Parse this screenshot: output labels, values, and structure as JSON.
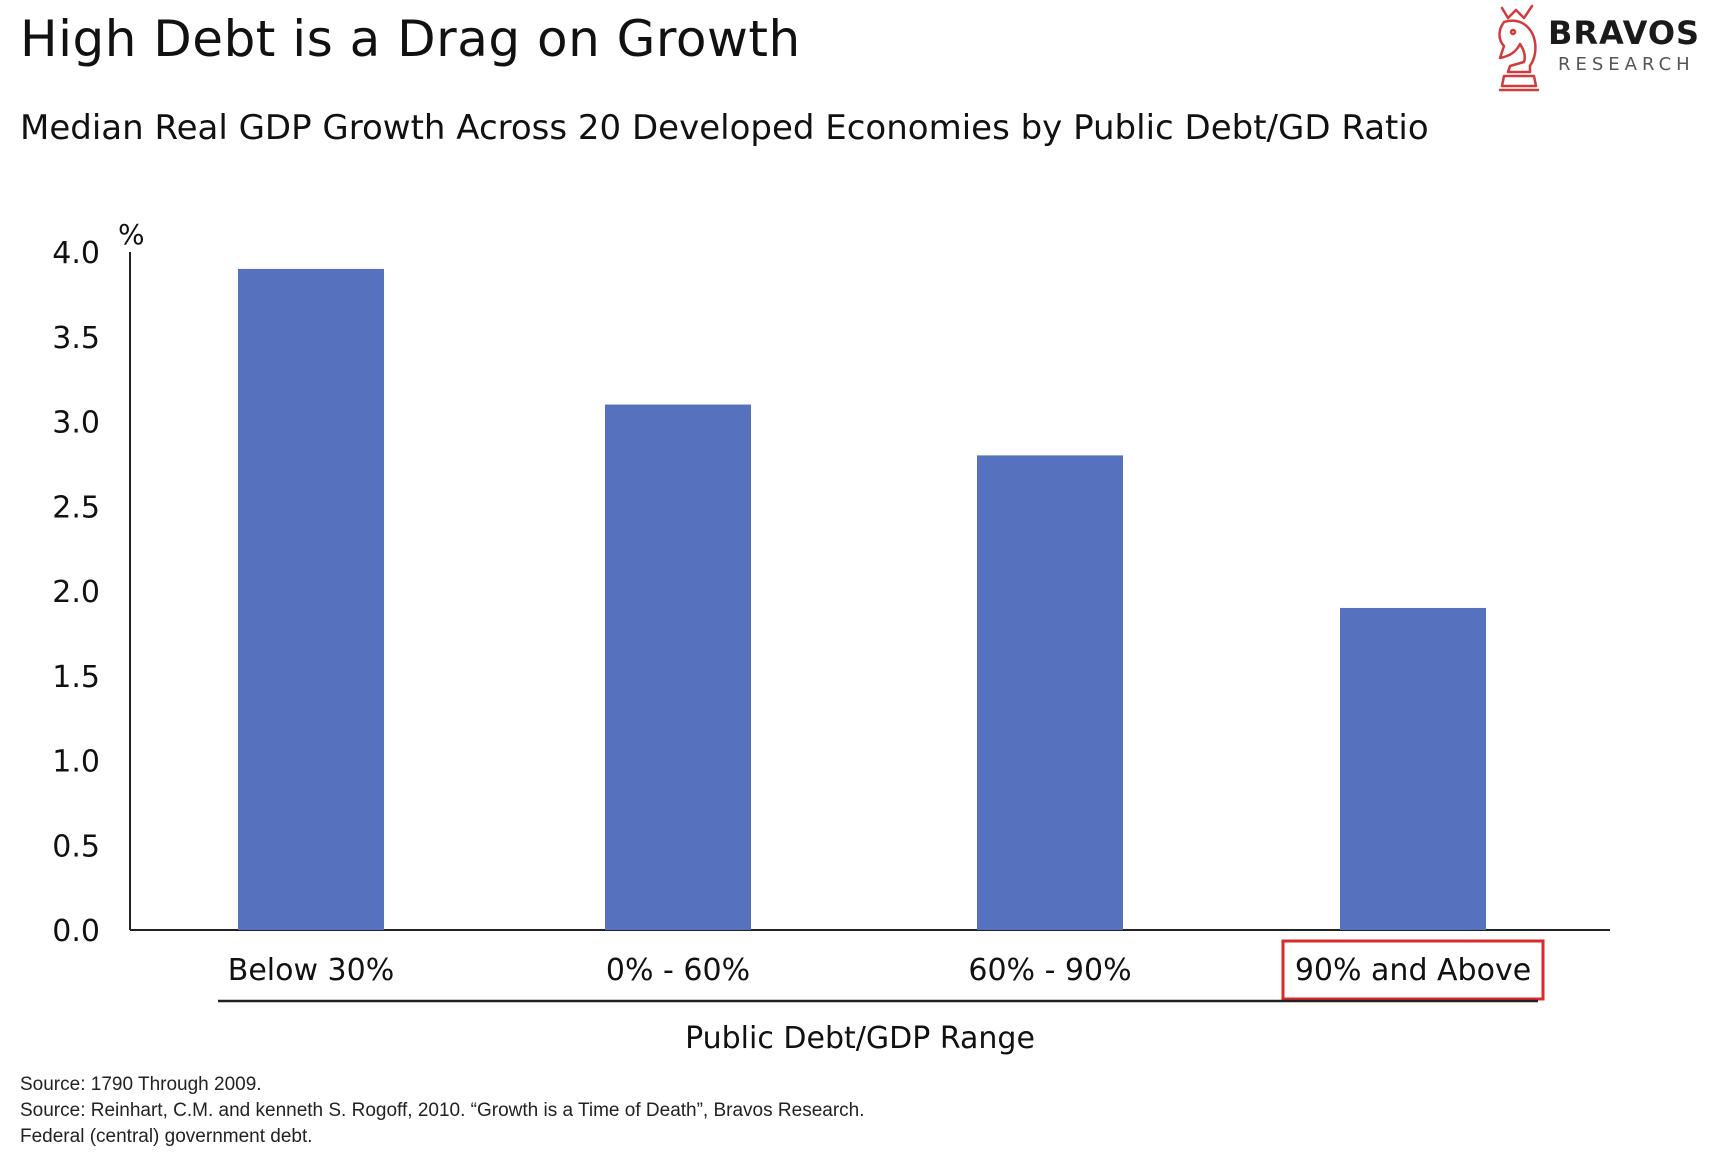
{
  "header": {
    "title": "High Debt is a Drag on Growth",
    "subtitle": "Median Real GDP Growth Across 20 Developed Economies by Public Debt/GD Ratio"
  },
  "brand": {
    "name": "BRAVOS",
    "sub": "RESEARCH",
    "icon": "knight-chess-piece-icon",
    "color": "#d23b3b"
  },
  "chart_data": {
    "type": "bar",
    "title": "",
    "categories": [
      "Below 30%",
      "0% - 60%",
      "60% - 90%",
      "90% and Above"
    ],
    "values": [
      3.9,
      3.1,
      2.8,
      1.9
    ],
    "xlabel": "Public Debt/GDP Range",
    "ylabel": "%",
    "ylim": [
      0,
      4.0
    ],
    "yticks": [
      "0.0",
      "0.5",
      "1.0",
      "1.5",
      "2.0",
      "2.5",
      "3.0",
      "3.5",
      "4.0"
    ],
    "bar_color": "#5672bf",
    "highlighted_category": "90% and Above",
    "highlight_color": "#d92b2b",
    "grid": false,
    "legend": "none"
  },
  "footnotes": [
    "Source: 1790 Through 2009.",
    "Source: Reinhart, C.M. and kenneth S. Rogoff, 2010. “Growth is a Time of Death”, Bravos Research.",
    "Federal (central) government debt."
  ]
}
